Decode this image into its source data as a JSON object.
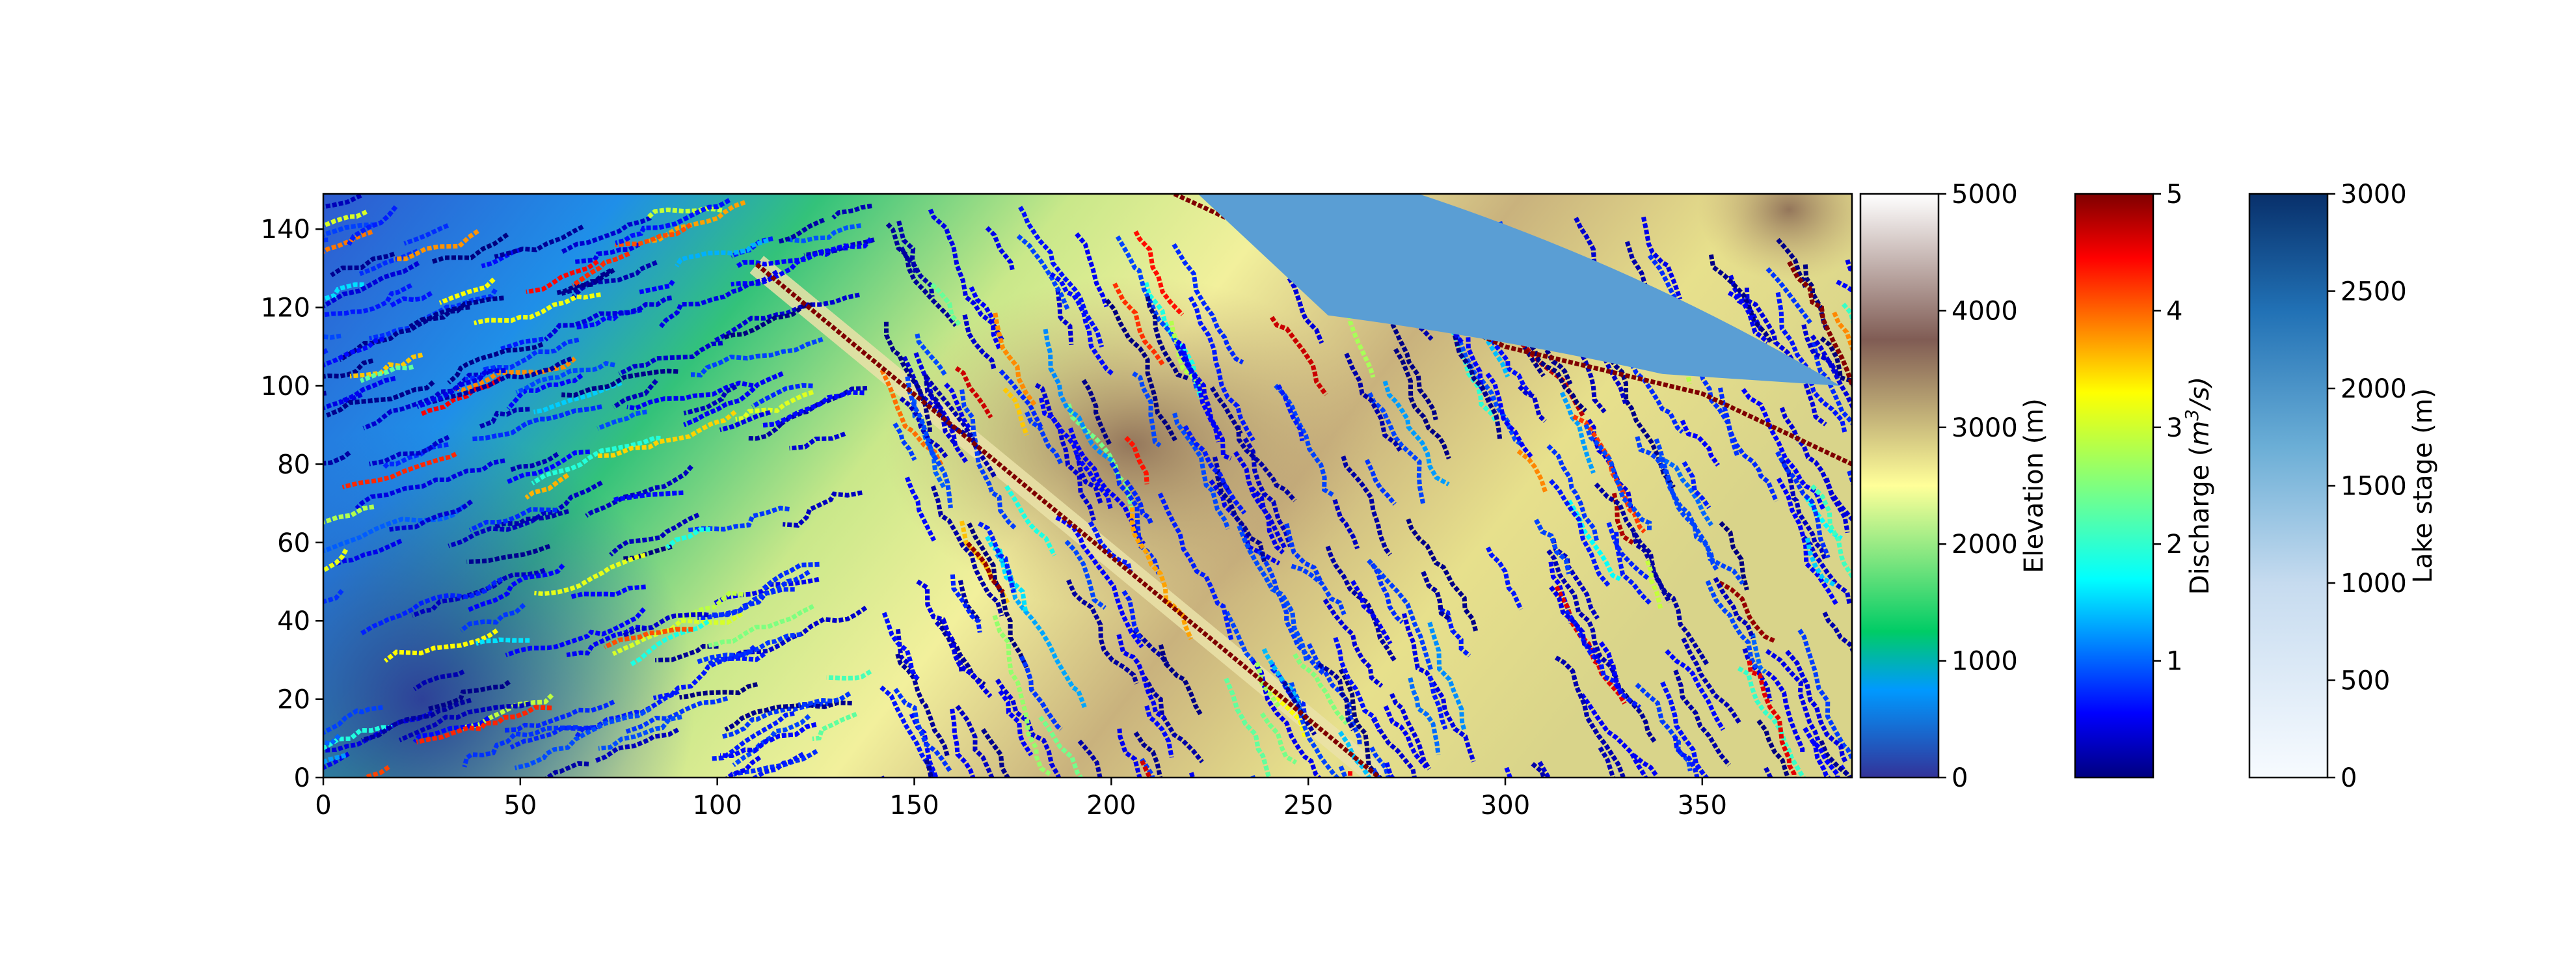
{
  "chart_data": {
    "type": "heatmap",
    "title": "",
    "xlabel": "",
    "ylabel": "",
    "map": {
      "xlim": [
        0,
        388
      ],
      "ylim": [
        0,
        149
      ],
      "xticks": [
        0,
        50,
        100,
        150,
        200,
        250,
        300,
        350
      ],
      "yticks": [
        0,
        20,
        40,
        60,
        80,
        100,
        120,
        140
      ],
      "layers": [
        "Elevation (m)",
        "Discharge (m3/s)",
        "Lake stage (m)"
      ],
      "features": {
        "ridge_line": [
          [
            110,
            131
          ],
          [
            268,
            0
          ]
        ],
        "divide_line": [
          [
            216,
            149
          ],
          [
            300,
            110
          ],
          [
            350,
            98
          ],
          [
            388,
            80
          ]
        ],
        "lake": {
          "center": [
            300,
            135
          ],
          "description": "lake"
        }
      }
    },
    "colorbars": [
      {
        "label": "Elevation (m)",
        "colormap": "terrain",
        "range": [
          0,
          5000
        ],
        "ticks": [
          0,
          1000,
          2000,
          3000,
          4000,
          5000
        ],
        "stops": [
          {
            "v": 0,
            "color": "#333399"
          },
          {
            "v": 750,
            "color": "#0099ff"
          },
          {
            "v": 1250,
            "color": "#00cc66"
          },
          {
            "v": 2500,
            "color": "#ffff99"
          },
          {
            "v": 3750,
            "color": "#805c54"
          },
          {
            "v": 5000,
            "color": "#ffffff"
          }
        ]
      },
      {
        "label": "Discharge (m3/s)",
        "label_main": "Discharge (",
        "label_m": "m",
        "label_sup": "3",
        "label_end": "/s)",
        "colormap": "jet",
        "range": [
          0,
          5
        ],
        "ticks": [
          1,
          2,
          3,
          4,
          5
        ],
        "stops": [
          {
            "v": 0,
            "color": "#00007f"
          },
          {
            "v": 0.55,
            "color": "#0000ff"
          },
          {
            "v": 1.7,
            "color": "#00ffff"
          },
          {
            "v": 2.5,
            "color": "#7fff7f"
          },
          {
            "v": 3.3,
            "color": "#ffff00"
          },
          {
            "v": 4.45,
            "color": "#ff0000"
          },
          {
            "v": 5,
            "color": "#7f0000"
          }
        ]
      },
      {
        "label": "Lake stage (m)",
        "colormap": "Blues",
        "range": [
          0,
          3000
        ],
        "ticks": [
          0,
          500,
          1000,
          1500,
          2000,
          2500,
          3000
        ],
        "stops": [
          {
            "v": 0,
            "color": "#f7fbff"
          },
          {
            "v": 1000,
            "color": "#c6dbef"
          },
          {
            "v": 1700,
            "color": "#6baed6"
          },
          {
            "v": 2400,
            "color": "#2171b5"
          },
          {
            "v": 3000,
            "color": "#08306b"
          }
        ]
      }
    ]
  }
}
